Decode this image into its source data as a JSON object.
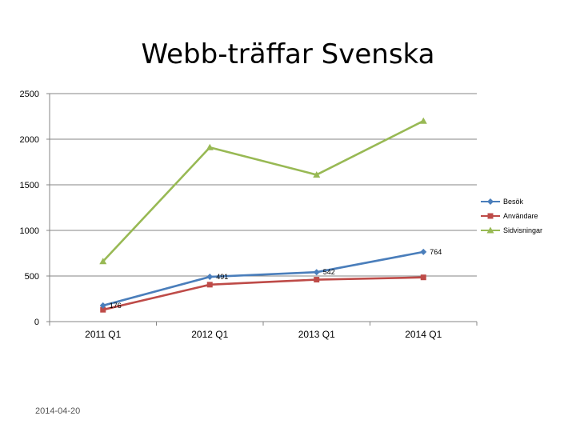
{
  "chart_data": {
    "type": "line",
    "title": "Webb-träffar Svenska",
    "xlabel": "",
    "ylabel": "",
    "categories": [
      "2011 Q1",
      "2012 Q1",
      "2013 Q1",
      "2014 Q1"
    ],
    "ylim": [
      0,
      2500
    ],
    "yticks": [
      0,
      500,
      1000,
      1500,
      2000,
      2500
    ],
    "grid": true,
    "legend_position": "right",
    "series": [
      {
        "name": "Besök",
        "values": [
          176,
          491,
          542,
          764
        ],
        "color": "#4A7EBB",
        "marker": "diamond",
        "data_labels": [
          "176",
          "491",
          "542",
          "764"
        ]
      },
      {
        "name": "Användare",
        "values": [
          130,
          405,
          460,
          485
        ],
        "color": "#BE4B48",
        "marker": "square"
      },
      {
        "name": "Sidvisningar",
        "values": [
          660,
          1910,
          1610,
          2200
        ],
        "color": "#98B954",
        "marker": "triangle"
      }
    ]
  },
  "footer": {
    "date": "2014-04-20"
  }
}
